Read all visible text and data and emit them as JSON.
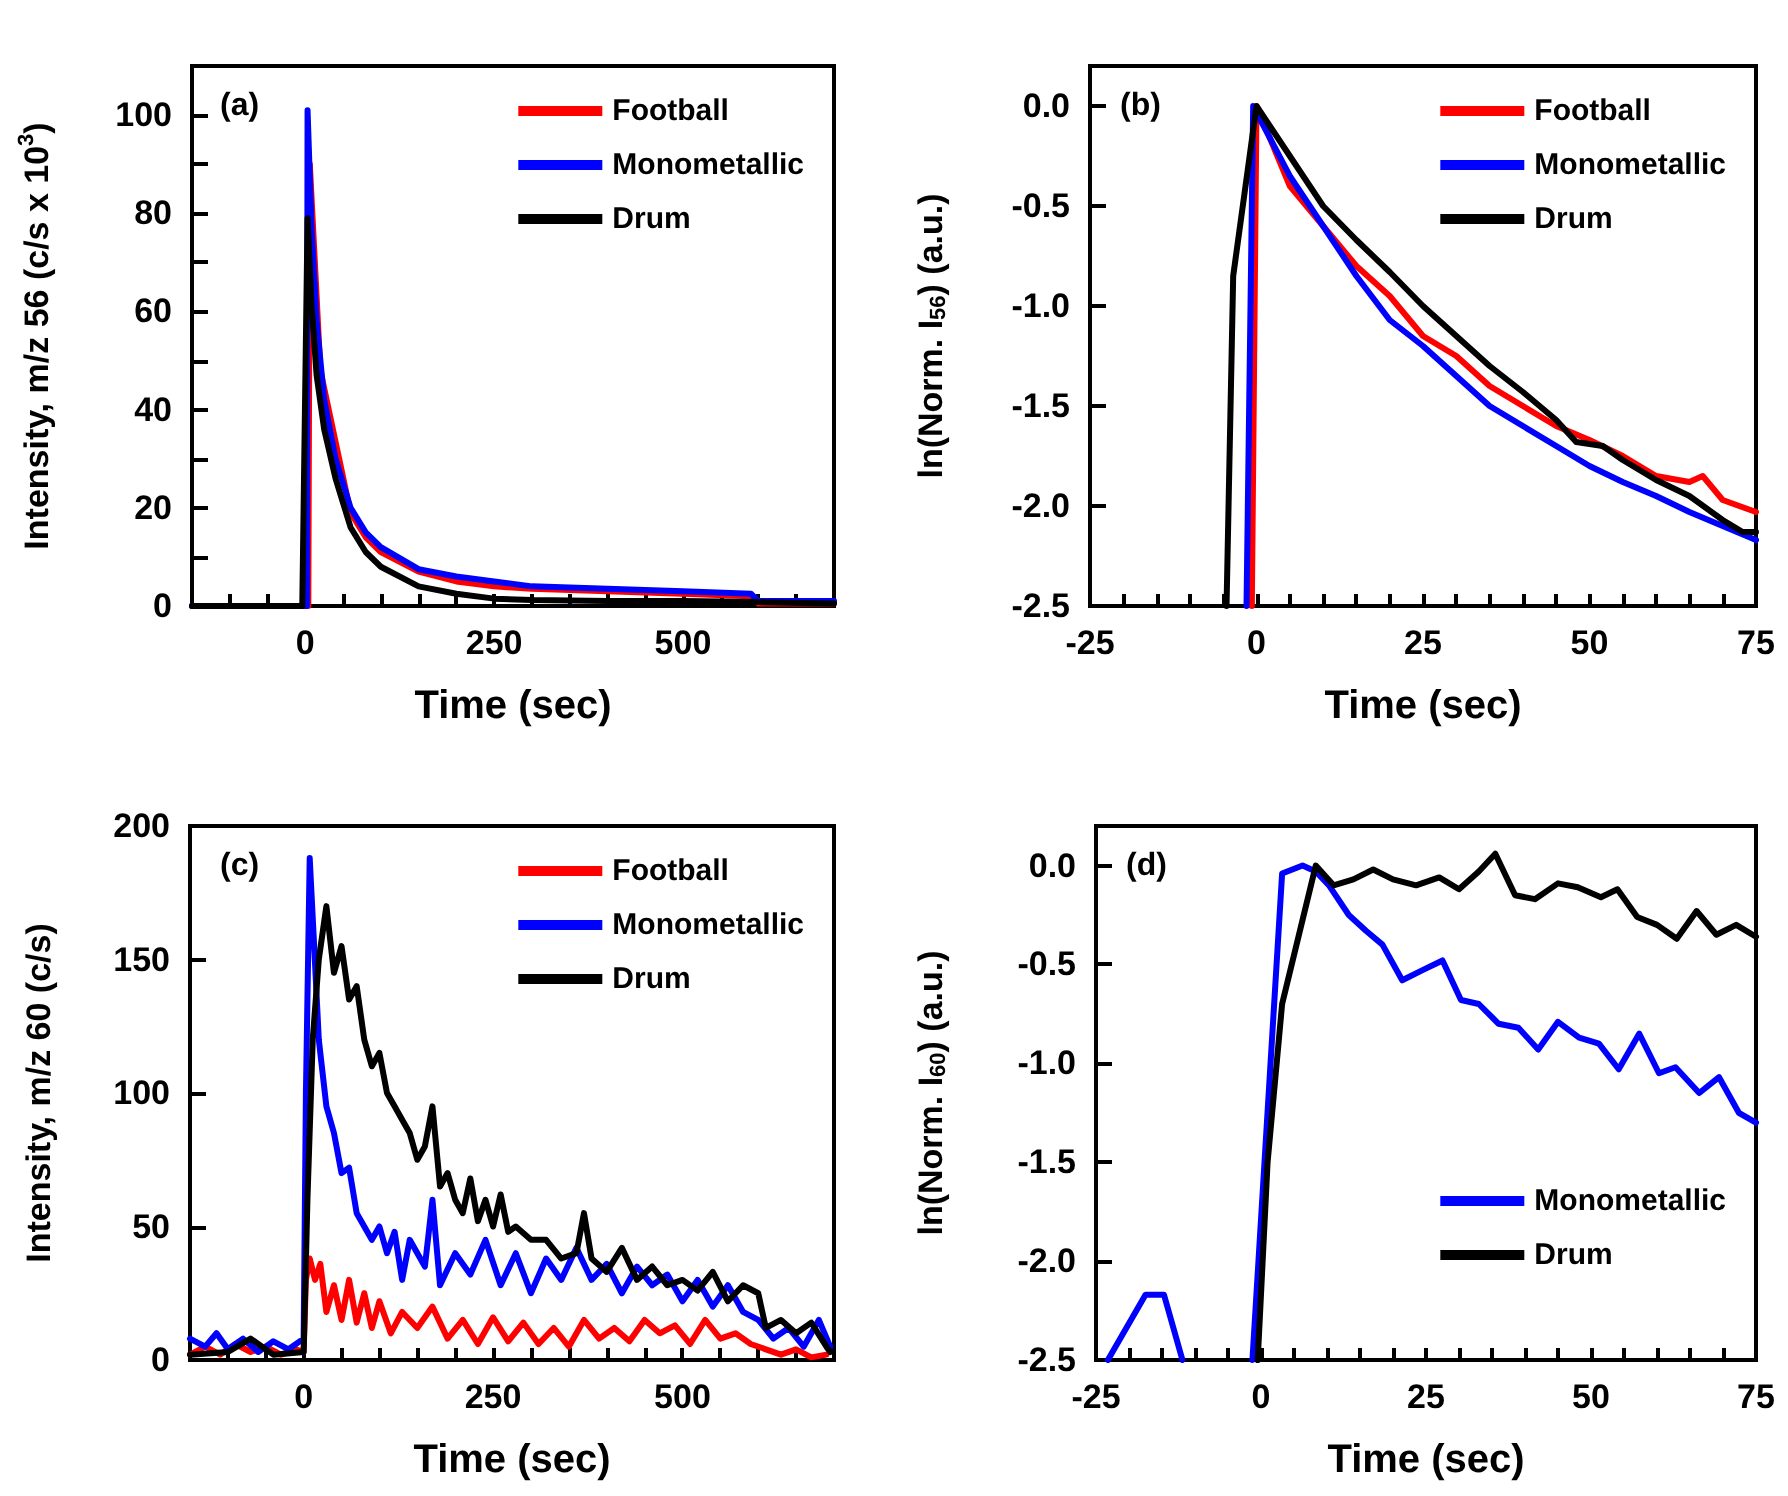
{
  "chart_data": [
    {
      "type": "line",
      "annotations": [
        "(a)"
      ],
      "xlabel": "Time (sec)",
      "ylabel": "Intensity, m/z 56 (c/s x 10$^{3}$)",
      "xlim": [
        -150,
        700
      ],
      "xticks": [
        {
          "value": -100,
          "label": null
        },
        {
          "value": -50,
          "label": null
        },
        0,
        {
          "value": 50,
          "label": null
        },
        {
          "value": 100,
          "label": null
        },
        {
          "value": 150,
          "label": null
        },
        {
          "value": 200,
          "label": null
        },
        250,
        {
          "value": 300,
          "label": null
        },
        {
          "value": 350,
          "label": null
        },
        {
          "value": 400,
          "label": null
        },
        {
          "value": 450,
          "label": null
        },
        500,
        {
          "value": 550,
          "label": null
        },
        {
          "value": 600,
          "label": null
        },
        {
          "value": 650,
          "label": null
        }
      ],
      "ylim": [
        0,
        110
      ],
      "yticks": [
        0,
        {
          "value": 10,
          "label": null
        },
        20,
        {
          "value": 30,
          "label": null
        },
        40,
        {
          "value": 50,
          "label": null
        },
        60,
        {
          "value": 70,
          "label": null
        },
        80,
        {
          "value": 90,
          "label": null
        },
        100
      ],
      "legend": "top right",
      "grid": false,
      "marker": "none",
      "line_style": "solid",
      "series": [
        {
          "name": "Football",
          "color": "#ff0000",
          "x": [
            -150,
            0,
            4,
            6,
            20,
            60,
            80,
            100,
            150,
            200,
            250,
            300,
            400,
            500,
            590,
            600,
            700
          ],
          "values": [
            0,
            0,
            0,
            90,
            48,
            19,
            14,
            11,
            7,
            5,
            4,
            3.5,
            3,
            2.5,
            2,
            0.5,
            0.5
          ]
        },
        {
          "name": "Monometallic",
          "color": "#0000ff",
          "x": [
            -150,
            0,
            2,
            3,
            8,
            15,
            25,
            40,
            60,
            80,
            100,
            150,
            200,
            250,
            300,
            400,
            500,
            590,
            600,
            700
          ],
          "values": [
            0,
            0,
            0,
            101,
            78,
            58,
            42,
            30,
            20,
            15,
            12,
            7.5,
            6,
            5,
            4,
            3.5,
            3,
            2.5,
            1,
            1
          ]
        },
        {
          "name": "Drum",
          "color": "#000000",
          "x": [
            -150,
            -4,
            3,
            8,
            15,
            25,
            40,
            60,
            80,
            100,
            150,
            200,
            250,
            300,
            400,
            500,
            600,
            700
          ],
          "values": [
            0,
            0,
            79,
            62,
            47,
            36,
            26,
            16,
            11,
            8,
            4,
            2.5,
            1.5,
            1.2,
            1,
            1,
            0.8,
            0.5
          ]
        }
      ]
    },
    {
      "type": "line",
      "annotations": [
        "(b)"
      ],
      "xlabel": "Time (sec)",
      "ylabel": "ln(Norm. I$_{56}$) (a.u.)",
      "xlim": [
        -25,
        75
      ],
      "xticks": [
        -25,
        {
          "value": -20,
          "label": null
        },
        {
          "value": -15,
          "label": null
        },
        {
          "value": -10,
          "label": null
        },
        {
          "value": -5,
          "label": null
        },
        0,
        {
          "value": 5,
          "label": null
        },
        {
          "value": 10,
          "label": null
        },
        {
          "value": 15,
          "label": null
        },
        {
          "value": 20,
          "label": null
        },
        25,
        {
          "value": 30,
          "label": null
        },
        {
          "value": 35,
          "label": null
        },
        {
          "value": 40,
          "label": null
        },
        {
          "value": 45,
          "label": null
        },
        50,
        {
          "value": 55,
          "label": null
        },
        {
          "value": 60,
          "label": null
        },
        {
          "value": 65,
          "label": null
        },
        {
          "value": 70,
          "label": null
        },
        75
      ],
      "ylim": [
        -2.5,
        0.2
      ],
      "yticks": [
        {
          "value": -2.5,
          "label": "-2.5"
        },
        {
          "value": -2,
          "label": "-2.0"
        },
        {
          "value": -1.5,
          "label": "-1.5"
        },
        {
          "value": -1,
          "label": "-1.0"
        },
        {
          "value": -0.5,
          "label": "-0.5"
        },
        {
          "value": 0,
          "label": "0.0"
        }
      ],
      "legend": "top right",
      "grid": false,
      "marker": "none",
      "line_style": "solid",
      "series": [
        {
          "name": "Football",
          "color": "#ff0000",
          "x": [
            -0.7,
            0,
            5,
            10,
            15,
            20,
            25,
            30,
            35,
            40,
            45,
            50,
            55,
            60,
            65,
            67,
            70,
            75
          ],
          "values": [
            -2.5,
            0,
            -0.4,
            -0.6,
            -0.8,
            -0.95,
            -1.15,
            -1.25,
            -1.4,
            -1.5,
            -1.6,
            -1.67,
            -1.75,
            -1.85,
            -1.88,
            -1.85,
            -1.97,
            -2.03
          ]
        },
        {
          "name": "Monometallic",
          "color": "#0000ff",
          "x": [
            -1.5,
            -0.5,
            5,
            10,
            15,
            20,
            25,
            30,
            35,
            40,
            45,
            50,
            55,
            60,
            65,
            70,
            75
          ],
          "values": [
            -2.5,
            0,
            -0.35,
            -0.6,
            -0.85,
            -1.07,
            -1.2,
            -1.35,
            -1.5,
            -1.6,
            -1.7,
            -1.8,
            -1.88,
            -1.95,
            -2.03,
            -2.1,
            -2.17
          ]
        },
        {
          "name": "Drum",
          "color": "#000000",
          "x": [
            -4.5,
            -3.5,
            0,
            5,
            10,
            15,
            20,
            25,
            30,
            35,
            40,
            45,
            48,
            52,
            55,
            60,
            65,
            70,
            73,
            75
          ],
          "values": [
            -2.5,
            -0.85,
            0,
            -0.25,
            -0.5,
            -0.67,
            -0.83,
            -1.0,
            -1.15,
            -1.3,
            -1.43,
            -1.57,
            -1.68,
            -1.7,
            -1.77,
            -1.87,
            -1.95,
            -2.07,
            -2.13,
            -2.13
          ]
        }
      ]
    },
    {
      "type": "line",
      "annotations": [
        "(c)"
      ],
      "xlabel": "Time (sec)",
      "ylabel": "Intensity, m/z 60 (c/s)",
      "xlim": [
        -150,
        700
      ],
      "xticks": [
        {
          "value": -100,
          "label": null
        },
        {
          "value": -50,
          "label": null
        },
        0,
        {
          "value": 50,
          "label": null
        },
        {
          "value": 100,
          "label": null
        },
        {
          "value": 150,
          "label": null
        },
        {
          "value": 200,
          "label": null
        },
        250,
        {
          "value": 300,
          "label": null
        },
        {
          "value": 350,
          "label": null
        },
        {
          "value": 400,
          "label": null
        },
        {
          "value": 450,
          "label": null
        },
        500,
        {
          "value": 550,
          "label": null
        },
        {
          "value": 600,
          "label": null
        },
        {
          "value": 650,
          "label": null
        }
      ],
      "ylim": [
        0,
        200
      ],
      "yticks": [
        0,
        50,
        100,
        150,
        200
      ],
      "legend": "top right",
      "grid": false,
      "marker": "none",
      "line_style": "solid",
      "series": [
        {
          "name": "Football",
          "color": "#ff0000",
          "x": [
            -150,
            -130,
            -110,
            -90,
            -70,
            -50,
            -30,
            -10,
            0,
            3,
            8,
            15,
            22,
            30,
            40,
            50,
            60,
            70,
            80,
            90,
            100,
            115,
            130,
            150,
            170,
            190,
            210,
            230,
            250,
            270,
            290,
            310,
            330,
            350,
            370,
            390,
            410,
            430,
            450,
            470,
            490,
            510,
            530,
            550,
            570,
            590,
            610,
            630,
            650,
            670,
            690
          ],
          "values": [
            2,
            5,
            2,
            6,
            3,
            5,
            2,
            4,
            3,
            30,
            38,
            30,
            36,
            18,
            28,
            15,
            30,
            14,
            25,
            12,
            22,
            10,
            18,
            12,
            20,
            8,
            15,
            6,
            16,
            7,
            14,
            6,
            12,
            5,
            15,
            8,
            12,
            7,
            15,
            10,
            13,
            6,
            15,
            8,
            10,
            6,
            4,
            2,
            4,
            1,
            2
          ]
        },
        {
          "name": "Monometallic",
          "color": "#0000ff",
          "x": [
            -150,
            -130,
            -115,
            -100,
            -80,
            -60,
            -40,
            -20,
            0,
            3,
            8,
            13,
            20,
            30,
            40,
            50,
            60,
            70,
            80,
            90,
            100,
            110,
            120,
            130,
            140,
            160,
            170,
            180,
            200,
            220,
            240,
            260,
            280,
            300,
            320,
            340,
            360,
            380,
            400,
            420,
            440,
            460,
            480,
            500,
            520,
            540,
            560,
            580,
            600,
            620,
            640,
            660,
            680,
            695
          ],
          "values": [
            8,
            5,
            10,
            4,
            8,
            3,
            7,
            4,
            8,
            100,
            188,
            160,
            120,
            95,
            85,
            70,
            72,
            55,
            50,
            45,
            50,
            40,
            48,
            30,
            45,
            35,
            60,
            28,
            40,
            32,
            45,
            28,
            40,
            25,
            38,
            30,
            42,
            30,
            36,
            25,
            35,
            28,
            32,
            22,
            30,
            20,
            28,
            18,
            15,
            8,
            12,
            5,
            15,
            5
          ]
        },
        {
          "name": "Drum",
          "color": "#000000",
          "x": [
            -150,
            -100,
            -70,
            -40,
            0,
            5,
            12,
            20,
            30,
            40,
            50,
            60,
            70,
            80,
            90,
            100,
            110,
            120,
            130,
            140,
            150,
            160,
            170,
            180,
            190,
            200,
            210,
            220,
            230,
            240,
            250,
            260,
            270,
            280,
            300,
            320,
            340,
            360,
            370,
            380,
            400,
            420,
            440,
            460,
            480,
            500,
            520,
            540,
            560,
            580,
            600,
            610,
            630,
            650,
            670,
            690,
            695
          ],
          "values": [
            2,
            3,
            8,
            2,
            3,
            60,
            120,
            150,
            170,
            145,
            155,
            135,
            140,
            120,
            110,
            115,
            100,
            95,
            90,
            85,
            75,
            80,
            95,
            65,
            70,
            60,
            55,
            68,
            52,
            60,
            50,
            62,
            48,
            50,
            45,
            45,
            38,
            40,
            55,
            38,
            33,
            42,
            30,
            35,
            28,
            30,
            26,
            33,
            22,
            28,
            25,
            12,
            15,
            10,
            14,
            5,
            3
          ]
        }
      ]
    },
    {
      "type": "line",
      "annotations": [
        "(d)"
      ],
      "xlabel": "Time (sec)",
      "ylabel": "ln(Norm. I$_{60}$) (a.u.)",
      "xlim": [
        -25,
        75
      ],
      "xticks": [
        -25,
        {
          "value": -20,
          "label": null
        },
        {
          "value": -15,
          "label": null
        },
        {
          "value": -10,
          "label": null
        },
        {
          "value": -5,
          "label": null
        },
        0,
        {
          "value": 5,
          "label": null
        },
        {
          "value": 10,
          "label": null
        },
        {
          "value": 15,
          "label": null
        },
        {
          "value": 20,
          "label": null
        },
        25,
        {
          "value": 30,
          "label": null
        },
        {
          "value": 35,
          "label": null
        },
        {
          "value": 40,
          "label": null
        },
        {
          "value": 45,
          "label": null
        },
        50,
        {
          "value": 55,
          "label": null
        },
        {
          "value": 60,
          "label": null
        },
        {
          "value": 65,
          "label": null
        },
        {
          "value": 70,
          "label": null
        },
        75
      ],
      "ylim": [
        -2.5,
        0.2
      ],
      "yticks": [
        {
          "value": -2.5,
          "label": "-2.5"
        },
        {
          "value": -2,
          "label": "-2.0"
        },
        {
          "value": -1.5,
          "label": "-1.5"
        },
        {
          "value": -1,
          "label": "-1.0"
        },
        {
          "value": -0.5,
          "label": "-0.5"
        },
        {
          "value": 0,
          "label": "0.0"
        }
      ],
      "legend": "bottom right",
      "grid": false,
      "marker": "none",
      "line_style": "solid",
      "series": [
        {
          "name": "Monometallic",
          "color": "#0000ff",
          "x": [
            -23.2,
            -17.5,
            -14.7,
            -11.9,
            -8,
            -1.3,
            3.2,
            6.3,
            8.3,
            10.3,
            13.3,
            15.9,
            18.4,
            21.4,
            24.4,
            27.5,
            30.3,
            33,
            36,
            39,
            42,
            45,
            48.2,
            51.2,
            54.2,
            57.3,
            60.3,
            62.8,
            66.4,
            69.4,
            72.4,
            75
          ],
          "values": [
            -2.5,
            -2.17,
            -2.17,
            -2.5,
            null,
            -2.5,
            -0.04,
            0,
            -0.03,
            -0.1,
            -0.25,
            -0.33,
            -0.4,
            -0.58,
            -0.53,
            -0.48,
            -0.68,
            -0.7,
            -0.8,
            -0.82,
            -0.93,
            -0.79,
            -0.87,
            -0.9,
            -1.03,
            -0.85,
            -1.05,
            -1.02,
            -1.15,
            -1.07,
            -1.25,
            -1.3
          ]
        },
        {
          "name": "Drum",
          "color": "#000000",
          "x": [
            -0.5,
            1,
            3.2,
            8.3,
            11,
            14,
            17,
            20,
            23.5,
            27,
            30,
            33,
            35.5,
            38.5,
            41.5,
            45,
            48,
            51.5,
            54,
            57,
            60,
            63,
            66,
            69,
            72,
            75
          ],
          "values": [
            -2.5,
            -1.5,
            -0.7,
            0,
            -0.1,
            -0.07,
            -0.02,
            -0.07,
            -0.1,
            -0.06,
            -0.12,
            -0.03,
            0.06,
            -0.15,
            -0.17,
            -0.09,
            -0.11,
            -0.16,
            -0.12,
            -0.26,
            -0.3,
            -0.37,
            -0.23,
            -0.35,
            -0.3,
            -0.36
          ]
        }
      ]
    }
  ]
}
